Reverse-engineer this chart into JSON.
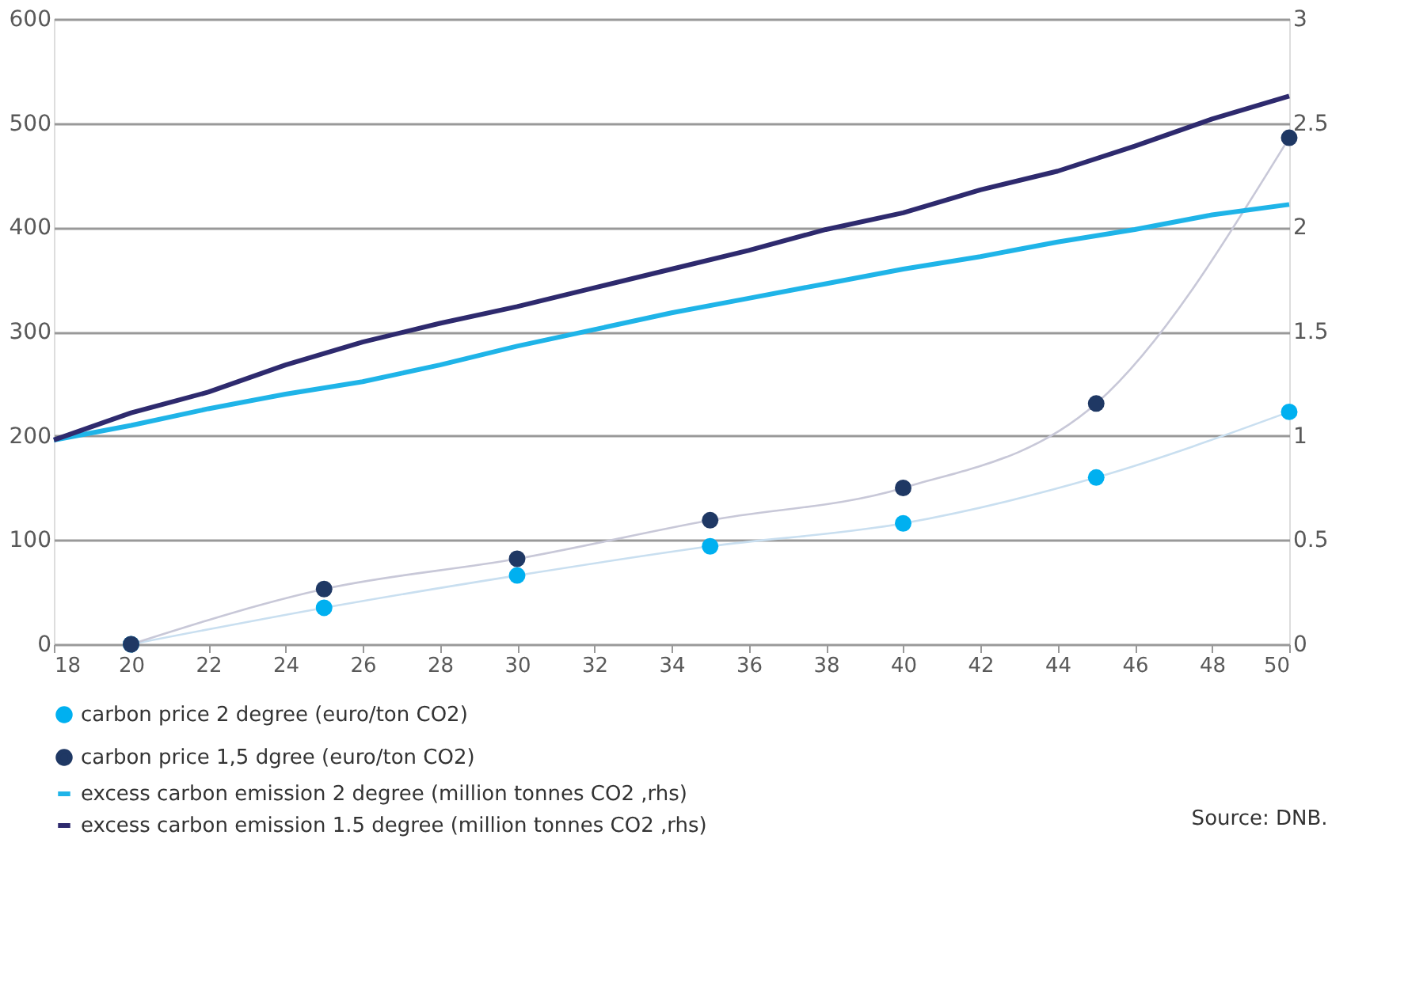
{
  "chart_data": {
    "type": "scatter",
    "x": [
      20,
      25,
      30,
      35,
      40,
      45,
      50
    ],
    "xlim": [
      18,
      50
    ],
    "xticks": [
      18,
      20,
      22,
      24,
      26,
      28,
      30,
      32,
      34,
      36,
      38,
      40,
      42,
      44,
      46,
      48,
      50
    ],
    "ylim": [
      0,
      600
    ],
    "yticks": [
      0,
      100,
      200,
      300,
      400,
      500,
      600
    ],
    "y2lim": [
      0,
      3
    ],
    "y2ticks": [
      0,
      0.5,
      1,
      1.5,
      2,
      2.5,
      3
    ],
    "grid": "y",
    "legend": "bottom",
    "line_style": "solid",
    "annotations": [
      "Source: DNB."
    ],
    "series": [
      {
        "name": "carbon price 2 degree  (euro/ton CO2)",
        "marker": "circle",
        "color": "#00b0f0",
        "values": [
          0,
          35,
          66,
          94,
          116,
          160,
          223
        ]
      },
      {
        "name": "carbon price 1,5 dgree  (euro/ton CO2)",
        "marker": "circle",
        "color": "#1f3864",
        "values": [
          0,
          53,
          82,
          119,
          150,
          231,
          486
        ]
      },
      {
        "name": "excess carbon emission 2 degree (million tonnes CO2 ,rhs)",
        "type": "line",
        "axis": "y2",
        "color": "#1fb4e8",
        "x": [
          18,
          20,
          22,
          24,
          26,
          28,
          30,
          32,
          34,
          36,
          38,
          40,
          42,
          44,
          46,
          48,
          50
        ],
        "values": [
          0.98,
          1.05,
          1.13,
          1.2,
          1.26,
          1.34,
          1.43,
          1.51,
          1.59,
          1.66,
          1.73,
          1.8,
          1.86,
          1.93,
          1.99,
          2.06,
          2.11
        ]
      },
      {
        "name": "excess carbon emission 1.5 degree (million tonnes CO2 ,rhs)",
        "type": "line",
        "axis": "y2",
        "color": "#2e2a6e",
        "x": [
          18,
          20,
          22,
          24,
          26,
          28,
          30,
          32,
          34,
          36,
          38,
          40,
          42,
          44,
          46,
          48,
          50
        ],
        "values": [
          0.98,
          1.11,
          1.21,
          1.34,
          1.45,
          1.54,
          1.62,
          1.71,
          1.8,
          1.89,
          1.99,
          2.07,
          2.18,
          2.27,
          2.39,
          2.52,
          2.63
        ]
      },
      {
        "type": "line",
        "color": "#c9dff0",
        "values": [
          0,
          35,
          66,
          94,
          116,
          160,
          223
        ]
      },
      {
        "type": "line",
        "color": "#c8c8d8",
        "values": [
          0,
          53,
          82,
          119,
          150,
          231,
          486
        ]
      }
    ]
  }
}
